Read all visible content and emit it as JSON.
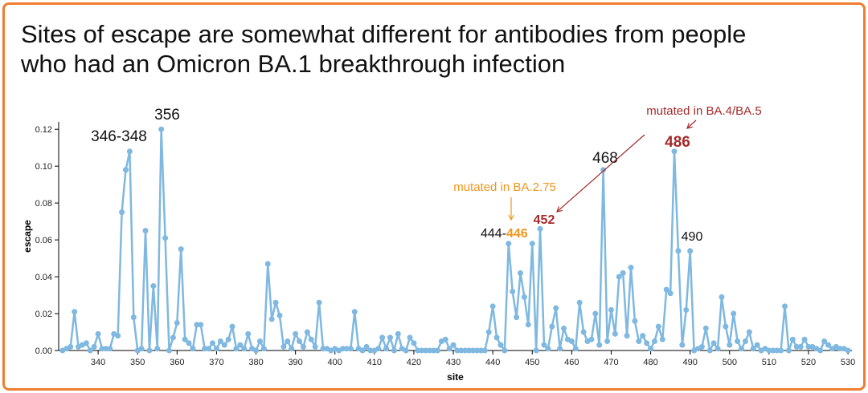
{
  "chart_data": {
    "type": "line",
    "title": "Sites of escape are somewhat different for antibodies from people who had an Omicron BA.1 breakthrough infection",
    "x_label": "site",
    "y_label": "escape",
    "xlim": [
      330,
      531
    ],
    "ylim": [
      0,
      0.124
    ],
    "xticks": [
      340,
      350,
      360,
      370,
      380,
      390,
      400,
      410,
      420,
      430,
      440,
      450,
      460,
      470,
      480,
      490,
      500,
      510,
      520,
      530
    ],
    "yticks": [
      {
        "value": 0,
        "label": "0.00"
      },
      {
        "value": 0.02,
        "label": "0.02"
      },
      {
        "value": 0.04,
        "label": "0.04"
      },
      {
        "value": 0.06,
        "label": "0.06"
      },
      {
        "value": 0.08,
        "label": "0.08"
      },
      {
        "value": 0.1,
        "label": "0.10"
      },
      {
        "value": 0.12,
        "label": "0.12"
      }
    ],
    "color": "#7fb8e0",
    "annotations": [
      "346-348",
      "356",
      "mutated in BA.2.75",
      "444-",
      "446",
      "452",
      "468",
      "490",
      "mutated in BA.4/BA.5",
      "486"
    ],
    "x": [
      331,
      332,
      333,
      334,
      335,
      336,
      337,
      338,
      339,
      340,
      341,
      342,
      343,
      344,
      345,
      346,
      347,
      348,
      349,
      350,
      351,
      352,
      353,
      354,
      355,
      356,
      357,
      358,
      359,
      360,
      361,
      362,
      363,
      364,
      365,
      366,
      367,
      368,
      369,
      370,
      371,
      372,
      373,
      374,
      375,
      376,
      377,
      378,
      379,
      380,
      381,
      382,
      383,
      384,
      385,
      386,
      387,
      388,
      389,
      390,
      391,
      392,
      393,
      394,
      395,
      396,
      397,
      398,
      399,
      400,
      401,
      402,
      403,
      404,
      405,
      406,
      407,
      408,
      409,
      410,
      411,
      412,
      413,
      414,
      415,
      416,
      417,
      418,
      419,
      420,
      421,
      422,
      423,
      424,
      425,
      426,
      427,
      428,
      429,
      430,
      431,
      432,
      433,
      434,
      435,
      436,
      437,
      438,
      439,
      440,
      441,
      442,
      443,
      444,
      445,
      446,
      447,
      448,
      449,
      450,
      451,
      452,
      453,
      454,
      455,
      456,
      457,
      458,
      459,
      460,
      461,
      462,
      463,
      464,
      465,
      466,
      467,
      468,
      469,
      470,
      471,
      472,
      473,
      474,
      475,
      476,
      477,
      478,
      479,
      480,
      481,
      482,
      483,
      484,
      485,
      486,
      487,
      488,
      489,
      490,
      491,
      492,
      493,
      494,
      495,
      496,
      497,
      498,
      499,
      500,
      501,
      502,
      503,
      504,
      505,
      506,
      507,
      508,
      509,
      510,
      511,
      512,
      513,
      514,
      515,
      516,
      517,
      518,
      519,
      520,
      521,
      522,
      523,
      524,
      525,
      526,
      527,
      528,
      529,
      530
    ],
    "values": [
      0,
      0.001,
      0.002,
      0.021,
      0.002,
      0.003,
      0.004,
      0,
      0.002,
      0.009,
      0.001,
      0.001,
      0.001,
      0.009,
      0.008,
      0.075,
      0.098,
      0.108,
      0.018,
      0,
      0.001,
      0.065,
      0,
      0.035,
      0.001,
      0.12,
      0.061,
      0,
      0.007,
      0.015,
      0.055,
      0.006,
      0.004,
      0.001,
      0.014,
      0.014,
      0.001,
      0.001,
      0.004,
      0.001,
      0.005,
      0.003,
      0.006,
      0.013,
      0.001,
      0.003,
      0.001,
      0.009,
      0.001,
      0,
      0.005,
      0.001,
      0.047,
      0.017,
      0.026,
      0.019,
      0.002,
      0.005,
      0.001,
      0.009,
      0.005,
      0.002,
      0.01,
      0.006,
      0.002,
      0.026,
      0.001,
      0.001,
      0,
      0.001,
      0,
      0.001,
      0.001,
      0.001,
      0.021,
      0.001,
      0,
      0.002,
      0,
      0,
      0.001,
      0.007,
      0.001,
      0.007,
      0,
      0.009,
      0.001,
      0,
      0.007,
      0.004,
      0,
      0,
      0,
      0,
      0,
      0,
      0.005,
      0.006,
      0.001,
      0.003,
      0,
      0,
      0,
      0,
      0,
      0,
      0,
      0,
      0.01,
      0.024,
      0.007,
      0.003,
      0,
      0.058,
      0.032,
      0.018,
      0.042,
      0.029,
      0.014,
      0.058,
      0,
      0.066,
      0.003,
      0.001,
      0.013,
      0.023,
      0.001,
      0.012,
      0.006,
      0.005,
      0.001,
      0.026,
      0.01,
      0.005,
      0.006,
      0.02,
      0.003,
      0.098,
      0.005,
      0.022,
      0.009,
      0.04,
      0.042,
      0.008,
      0.045,
      0.016,
      0.005,
      0.008,
      0.004,
      0.001,
      0.005,
      0.013,
      0.006,
      0.033,
      0.031,
      0.108,
      0.054,
      0.003,
      0.022,
      0.054,
      0,
      0.001,
      0.002,
      0.012,
      0,
      0.004,
      0.001,
      0.029,
      0.013,
      0.003,
      0.02,
      0.005,
      0.001,
      0.005,
      0.01,
      0.001,
      0.003,
      0,
      0.001,
      0,
      0,
      0,
      0,
      0.024,
      0,
      0.006,
      0.002,
      0.002,
      0.006,
      0.002,
      0.002,
      0.001,
      0,
      0.005,
      0.003,
      0.001,
      0.002,
      0.001,
      0.001,
      0
    ]
  }
}
